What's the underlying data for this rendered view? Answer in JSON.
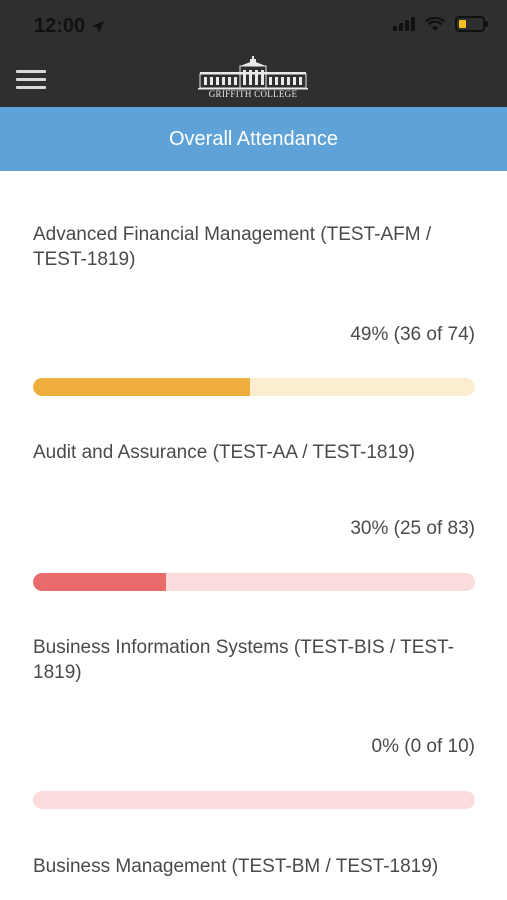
{
  "status_bar": {
    "time": "12:00"
  },
  "header": {
    "logo_text": "GRIFFITH COLLEGE",
    "title": "Overall Attendance"
  },
  "colors": {
    "nav_bg": "#2f2f2f",
    "title_bg": "#5fa2d8",
    "orange": "#f0ae3e",
    "orange_track": "#fdedcf",
    "red": "#e96b6b",
    "red_track": "#fadcdc"
  },
  "courses": [
    {
      "name": "Advanced Financial Management (TEST-AFM / TEST-1819)",
      "stats": "49% (36 of 74)",
      "percent": 49,
      "color": "#f0ae3e",
      "track": "#fdedcf"
    },
    {
      "name": "Audit and Assurance (TEST-AA / TEST-1819)",
      "stats": "30% (25 of 83)",
      "percent": 30,
      "color": "#e96b6b",
      "track": "#fadcdc"
    },
    {
      "name": "Business Information Systems (TEST-BIS / TEST-1819)",
      "stats": "0% (0 of 10)",
      "percent": 0,
      "color": "#e96b6b",
      "track": "#fadcdc"
    },
    {
      "name": "Business Management (TEST-BM / TEST-1819)"
    }
  ]
}
